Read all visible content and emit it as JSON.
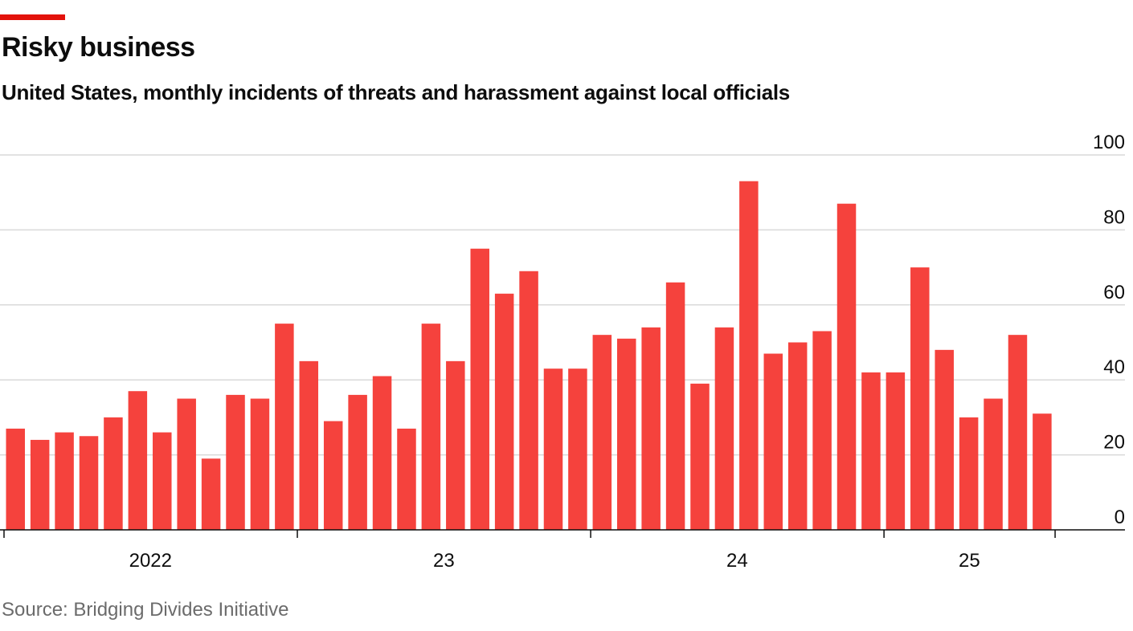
{
  "colors": {
    "accent": "#e3120b",
    "bar": "#f5423d",
    "grid": "#d9d9d9",
    "axis": "#0d0d0d"
  },
  "chart_data": {
    "type": "bar",
    "title": "Risky business",
    "subtitle": "United States, monthly incidents of threats and harassment against local officials",
    "source": "Source: Bridging Divides Initiative",
    "xlabel": "",
    "ylabel": "",
    "ylim": [
      0,
      100
    ],
    "yticks": [
      "0",
      "20",
      "40",
      "60",
      "80",
      "100"
    ],
    "xtick_labels": [
      {
        "label": "2022",
        "month_index": 5.5
      },
      {
        "label": "23",
        "month_index": 17.5
      },
      {
        "label": "24",
        "month_index": 29.5
      },
      {
        "label": "25",
        "month_index": 39
      }
    ],
    "year_boundaries": [
      0,
      12,
      24,
      36,
      43
    ],
    "grid": true,
    "categories": [
      "2022-01",
      "2022-02",
      "2022-03",
      "2022-04",
      "2022-05",
      "2022-06",
      "2022-07",
      "2022-08",
      "2022-09",
      "2022-10",
      "2022-11",
      "2022-12",
      "2023-01",
      "2023-02",
      "2023-03",
      "2023-04",
      "2023-05",
      "2023-06",
      "2023-07",
      "2023-08",
      "2023-09",
      "2023-10",
      "2023-11",
      "2023-12",
      "2024-01",
      "2024-02",
      "2024-03",
      "2024-04",
      "2024-05",
      "2024-06",
      "2024-07",
      "2024-08",
      "2024-09",
      "2024-10",
      "2024-11",
      "2024-12",
      "2025-01",
      "2025-02",
      "2025-03",
      "2025-04",
      "2025-05",
      "2025-06",
      "2025-07"
    ],
    "values": [
      27,
      24,
      26,
      25,
      30,
      37,
      26,
      35,
      19,
      36,
      35,
      55,
      45,
      29,
      36,
      41,
      27,
      55,
      45,
      75,
      63,
      69,
      43,
      43,
      52,
      51,
      54,
      66,
      39,
      54,
      93,
      47,
      50,
      53,
      87,
      42,
      42,
      70,
      48,
      30,
      35,
      52,
      31
    ]
  }
}
